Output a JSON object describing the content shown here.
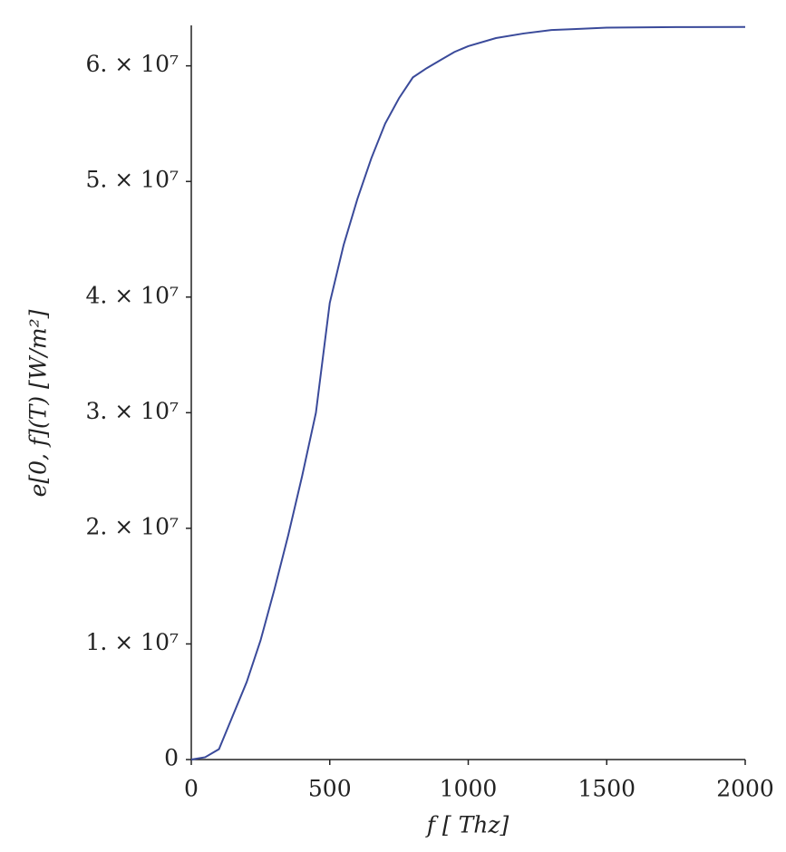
{
  "chart_data": {
    "type": "line",
    "xlabel": "f [ Thz]",
    "ylabel": "e[0, f](T)  [W/m²]",
    "x": [
      0,
      50,
      100,
      150,
      200,
      250,
      300,
      350,
      400,
      450,
      500,
      550,
      600,
      650,
      700,
      750,
      800,
      850,
      900,
      950,
      1000,
      1100,
      1200,
      1300,
      1400,
      1500,
      1750,
      2000
    ],
    "series": [
      {
        "color": "#3a4a9a",
        "values": [
          0,
          200000,
          900000,
          3800000,
          6700000,
          10300000,
          14700000,
          19400000,
          24500000,
          30000000,
          39500000,
          44500000,
          48500000,
          52000000,
          55000000,
          57200000,
          59000000,
          59800000,
          60500000,
          61200000,
          61700000,
          62400000,
          62800000,
          63100000,
          63200000,
          63300000,
          63350000,
          63360000
        ]
      }
    ],
    "xlim": [
      0,
      2000
    ],
    "xticks": [
      0,
      500,
      1000,
      1500,
      2000
    ],
    "ylim": [
      0,
      63500000
    ],
    "yticks": [
      0,
      {
        "value": 10000000,
        "label": "1. × 10⁷"
      },
      {
        "value": 20000000,
        "label": "2. × 10⁷"
      },
      {
        "value": 30000000,
        "label": "3. × 10⁷"
      },
      {
        "value": 40000000,
        "label": "4. × 10⁷"
      },
      {
        "value": 50000000,
        "label": "5. × 10⁷"
      },
      {
        "value": 60000000,
        "label": "6. × 10⁷"
      }
    ],
    "grid": false
  }
}
